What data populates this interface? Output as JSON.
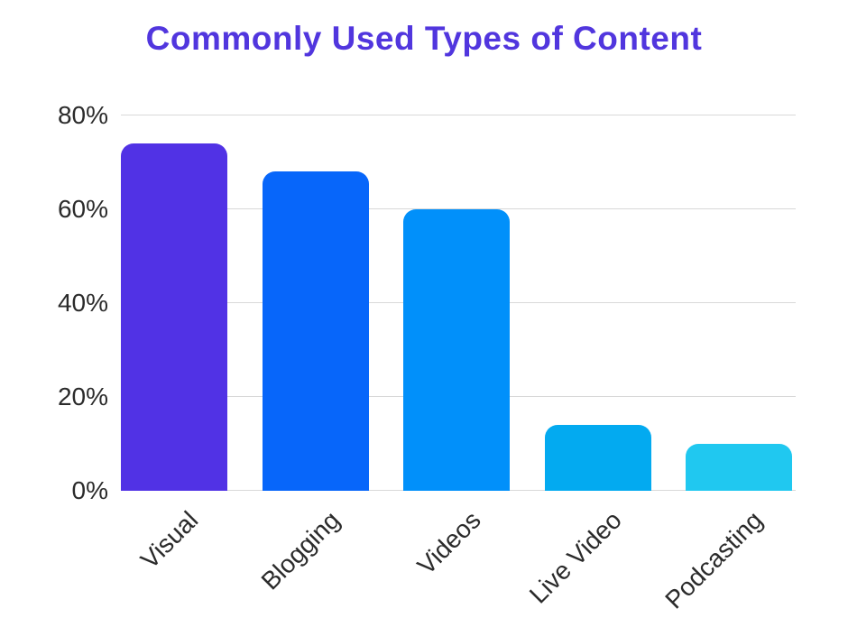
{
  "page": {
    "background": "#ffffff"
  },
  "chart_data": {
    "type": "bar",
    "title": "Commonly Used Types of Content",
    "title_color": "#5136de",
    "categories": [
      "Visual",
      "Blogging",
      "Videos",
      "Live Video",
      "Podcasting"
    ],
    "values": [
      74,
      68,
      60,
      14,
      10
    ],
    "value_unit": "%",
    "bar_colors": [
      "#5132e5",
      "#0766fa",
      "#0190fa",
      "#03aaf0",
      "#20c8f0"
    ],
    "yticks": [
      {
        "value": 0,
        "label": "0%"
      },
      {
        "value": 20,
        "label": "20%"
      },
      {
        "value": 40,
        "label": "40%"
      },
      {
        "value": 60,
        "label": "60%"
      },
      {
        "value": 80,
        "label": "80%"
      }
    ],
    "ylim": [
      0,
      85
    ],
    "xlabel": "",
    "ylabel": "",
    "grid": "horizontal",
    "gridline_color": "#d8d8d8",
    "axis_text_color": "#2b2b2b",
    "x_label_rotation_deg": -45,
    "legend": "none"
  }
}
